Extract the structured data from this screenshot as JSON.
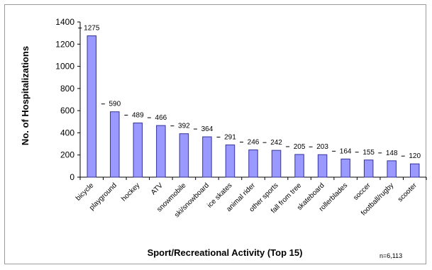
{
  "chart_data": {
    "type": "bar",
    "title": "",
    "xlabel": "Sport/Recreational Activity (Top 15)",
    "ylabel": "No. of Hospitalizations",
    "ylim": [
      0,
      1400
    ],
    "yticks": [
      0,
      200,
      400,
      600,
      800,
      1000,
      1200,
      1400
    ],
    "grid": false,
    "legend": "none",
    "note": "n=6,113",
    "bar_color": "#9999ff",
    "bar_edge_color": "#333399",
    "categories": [
      "bicycle",
      "playground",
      "hockey",
      "ATV",
      "snowmobile",
      "ski/snowboard",
      "ice skates",
      "animal rider",
      "other sports",
      "fall from tree",
      "skateboard",
      "rollerblades",
      "soccer",
      "football/rugby",
      "scooter"
    ],
    "values": [
      1275,
      590,
      489,
      466,
      392,
      364,
      291,
      246,
      242,
      205,
      203,
      164,
      155,
      148,
      120
    ],
    "value_labels": [
      "1275",
      "590",
      "489",
      "466",
      "392",
      "364",
      "291",
      "246",
      "242",
      "205",
      "203",
      "164",
      "155",
      "148",
      "120"
    ]
  }
}
